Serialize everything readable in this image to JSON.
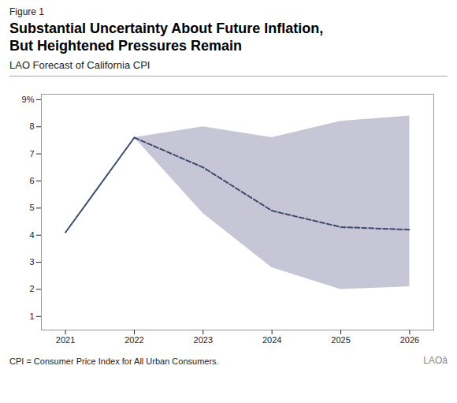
{
  "chart_data": {
    "type": "line",
    "figure_label": "Figure 1",
    "title": "Substantial Uncertainty About Future Inflation,\nBut Heightened Pressures Remain",
    "subtitle": "LAO Forecast of California CPI",
    "footnote": "CPI = Consumer Price Index for All Urban Consumers.",
    "annotations": [
      "LAOâ"
    ],
    "x": [
      2021,
      2022,
      2023,
      2024,
      2025,
      2026
    ],
    "series": [
      {
        "type": "band",
        "color": "#b8b8cc",
        "upper": [
          null,
          7.6,
          8.0,
          7.6,
          8.2,
          8.4
        ],
        "lower": [
          null,
          7.6,
          4.8,
          2.8,
          2.0,
          2.1
        ]
      },
      {
        "type": "line",
        "color": "#3d4a6e",
        "line_style": "solid",
        "values": [
          4.1,
          7.6,
          null,
          null,
          null,
          null
        ]
      },
      {
        "type": "line",
        "color": "#3d4a6e",
        "line_style": "dashed",
        "values": [
          null,
          7.6,
          6.5,
          4.9,
          4.3,
          4.2
        ]
      }
    ],
    "xlim": [
      2020.65,
      2026.35
    ],
    "xticks": [
      2021,
      2022,
      2023,
      2024,
      2025,
      2026
    ],
    "ylim": [
      0.5,
      9.2
    ],
    "yticks": [
      1,
      2,
      3,
      4,
      5,
      6,
      7,
      8,
      {
        "value": 9,
        "label": "9%"
      }
    ],
    "grid": false
  }
}
